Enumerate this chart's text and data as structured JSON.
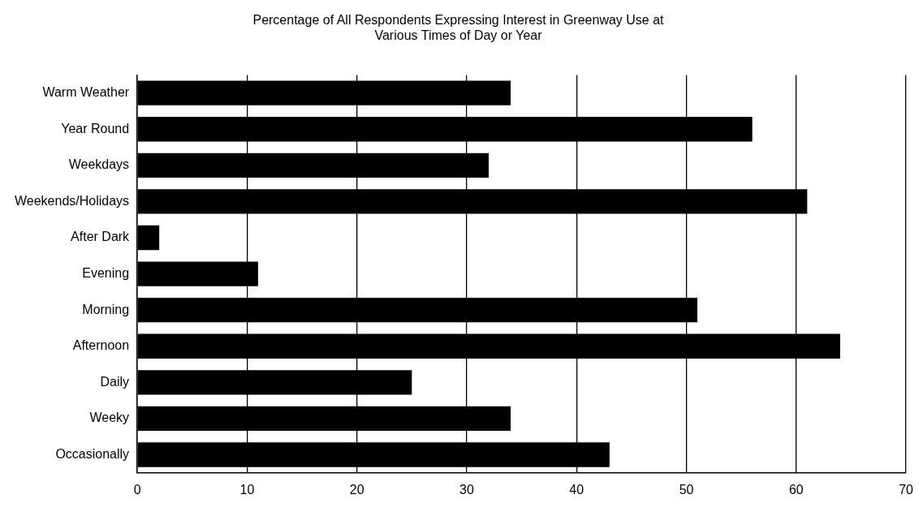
{
  "chart_data": {
    "type": "bar",
    "orientation": "horizontal",
    "title": "Percentage of All Respondents Expressing Interest in Greenway Use at\nVarious Times of Day or Year",
    "categories": [
      "Warm Weather",
      "Year Round",
      "Weekdays",
      "Weekends/Holidays",
      "After Dark",
      "Evening",
      "Morning",
      "Afternoon",
      "Daily",
      "Weeky",
      "Occasionally"
    ],
    "values": [
      34,
      56,
      32,
      61,
      2,
      11,
      51,
      64,
      25,
      34,
      43
    ],
    "color": "#000000",
    "xlim": [
      0,
      70
    ],
    "xticks": [
      0,
      10,
      20,
      30,
      40,
      50,
      60,
      70
    ],
    "grid": "x",
    "legend": false
  }
}
